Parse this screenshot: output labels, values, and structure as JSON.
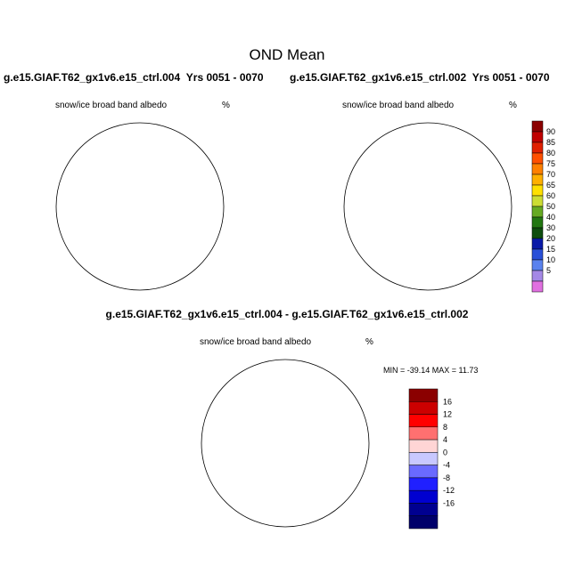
{
  "title": "OND Mean",
  "top_left": {
    "case": "g.e15.GIAF.T62_gx1v6.e15_ctrl.004",
    "years": "Yrs 0051 - 0070",
    "variable": "snow/ice broad band albedo",
    "units": "%"
  },
  "top_right": {
    "case": "g.e15.GIAF.T62_gx1v6.e15_ctrl.002",
    "years": "Yrs 0051 - 0070",
    "variable": "snow/ice broad band albedo",
    "units": "%"
  },
  "difference": {
    "title": "g.e15.GIAF.T62_gx1v6.e15_ctrl.004 - g.e15.GIAF.T62_gx1v6.e15_ctrl.002",
    "variable": "snow/ice broad band albedo",
    "units": "%",
    "min_max_text": "MIN = -39.14 MAX =  11.73"
  },
  "chart_data": [
    {
      "type": "heatmap",
      "projection": "south-polar-stereographic",
      "field": "snow/ice broad band albedo",
      "units": "%",
      "colorbar": {
        "orientation": "vertical",
        "tick_labels": [
          "90",
          "85",
          "80",
          "75",
          "70",
          "65",
          "60",
          "50",
          "40",
          "30",
          "20",
          "15",
          "10",
          "5"
        ],
        "colors": [
          "#8b0000",
          "#c00000",
          "#e02000",
          "#ff5000",
          "#ff8000",
          "#ffb000",
          "#ffe000",
          "#ccdd33",
          "#66aa22",
          "#227711",
          "#0e4d0e",
          "#0a1aa8",
          "#2a50d8",
          "#5a82ee",
          "#a488e6",
          "#e070e0"
        ]
      }
    },
    {
      "type": "heatmap",
      "projection": "south-polar-stereographic",
      "field": "snow/ice broad band albedo difference",
      "units": "%",
      "min": -39.14,
      "max": 11.73,
      "colorbar": {
        "orientation": "vertical",
        "tick_labels": [
          "16",
          "12",
          "8",
          "4",
          "0",
          "-4",
          "-8",
          "-12",
          "-16"
        ],
        "colors": [
          "#8b0000",
          "#cc0000",
          "#ff0000",
          "#ff7070",
          "#ffd5d5",
          "#c8c8ff",
          "#6a6aff",
          "#2020ff",
          "#0000d0",
          "#000090",
          "#00006a"
        ]
      }
    }
  ]
}
